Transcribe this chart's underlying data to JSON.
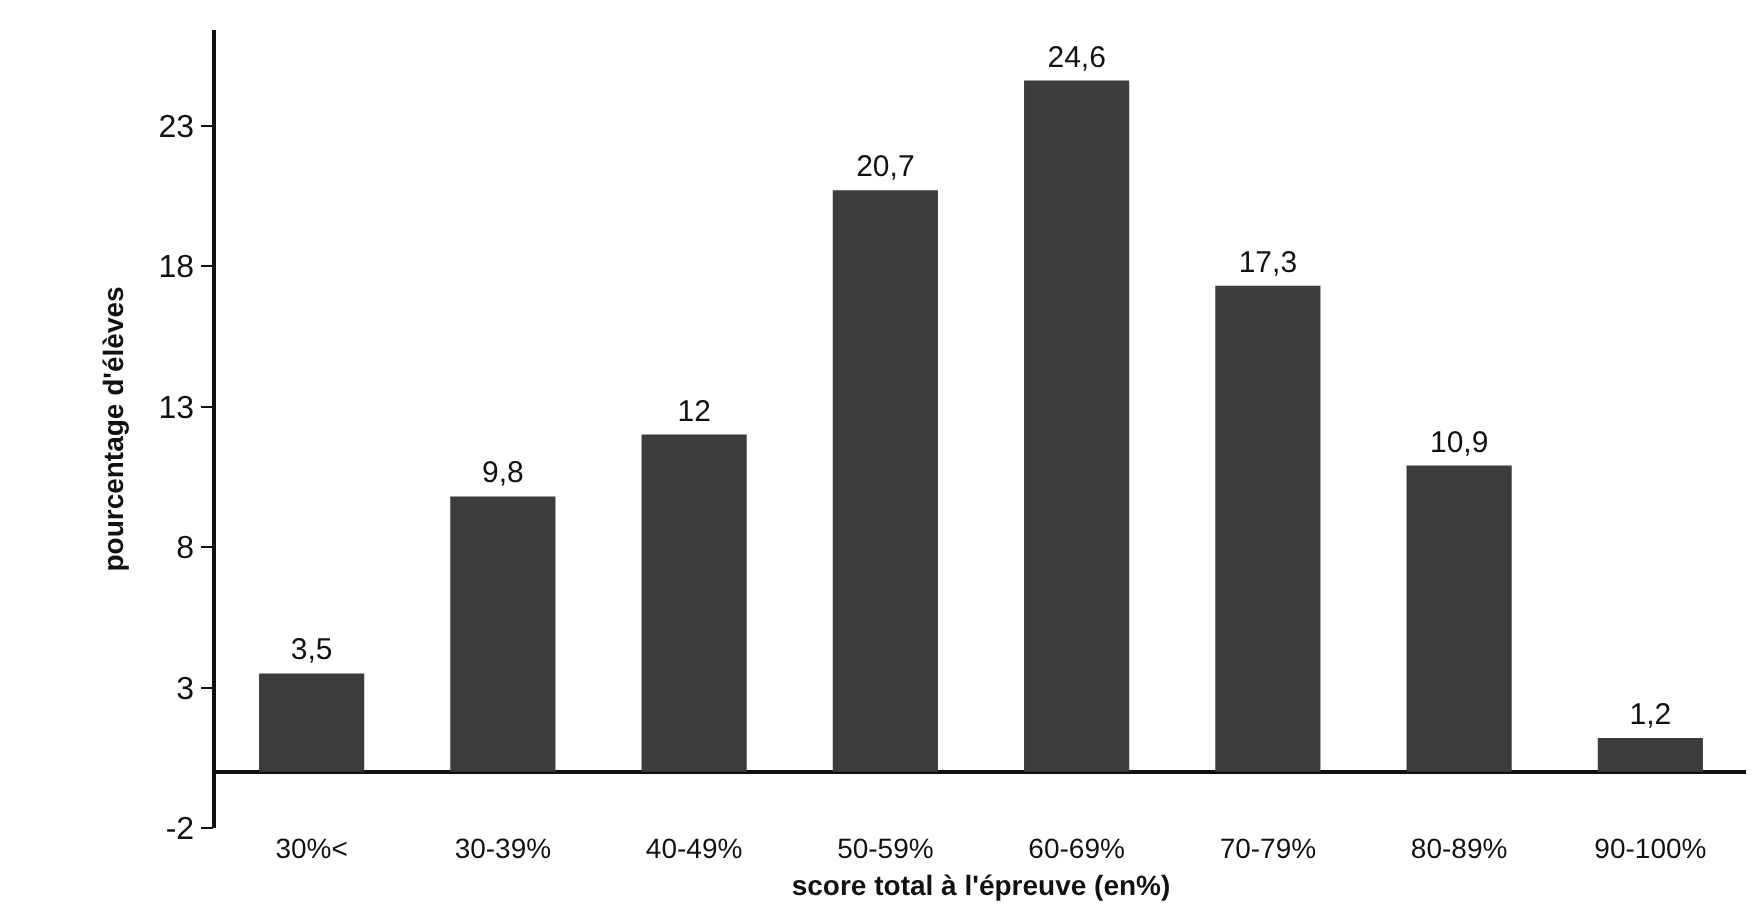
{
  "chart_data": {
    "type": "bar",
    "xlabel": "score total à l'épreuve (en%)",
    "ylabel": "pourcentage d'élèves",
    "categories": [
      "30%<",
      "30-39%",
      "40-49%",
      "50-59%",
      "60-69%",
      "70-79%",
      "80-89%",
      "90-100%"
    ],
    "values": [
      3.5,
      9.8,
      12,
      20.7,
      24.6,
      17.3,
      10.9,
      1.2
    ],
    "value_labels": [
      "3,5",
      "9,8",
      "12",
      "20,7",
      "24,6",
      "17,3",
      "10,9",
      "1,2"
    ],
    "color": "#3c3c3c",
    "ylim": [
      -2,
      26.4
    ],
    "yticks": [
      -2,
      3,
      8,
      13,
      18,
      23
    ]
  }
}
